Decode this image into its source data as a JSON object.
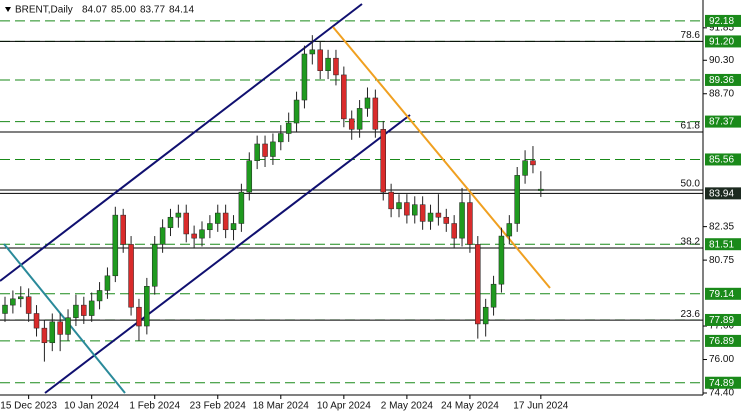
{
  "chart_data": {
    "type": "candlestick",
    "title": "BRENT,Daily",
    "last_quote": [
      {
        "value": 84.07,
        "label": "84.07"
      },
      {
        "value": 85.0,
        "label": "85.00"
      },
      {
        "value": 83.77,
        "label": "83.77"
      },
      {
        "value": 84.14,
        "label": "84.14"
      }
    ],
    "categories": [
      null,
      null,
      null,
      "15 Dec 2023",
      null,
      null,
      null,
      null,
      null,
      null,
      null,
      "10 Jan 2024",
      null,
      null,
      null,
      null,
      null,
      null,
      null,
      "1 Feb 2024",
      null,
      null,
      null,
      null,
      null,
      null,
      null,
      "23 Feb 2024",
      null,
      null,
      null,
      null,
      null,
      null,
      null,
      "18 Mar 2024",
      null,
      null,
      null,
      null,
      null,
      null,
      null,
      "10 Apr 2024",
      null,
      null,
      null,
      null,
      null,
      null,
      null,
      "2 May 2024",
      null,
      null,
      null,
      null,
      null,
      null,
      null,
      "24 May 2024",
      null,
      null,
      null,
      null,
      null,
      null,
      null,
      null,
      "17 Jun 2024"
    ],
    "open": [
      78.2,
      78.6,
      78.9,
      79.0,
      78.2,
      77.5,
      76.8,
      77.8,
      77.2,
      78.0,
      78.6,
      78.1,
      78.8,
      79.3,
      80.0,
      82.9,
      81.5,
      78.5,
      77.6,
      79.5,
      81.5,
      82.3,
      82.8,
      83.0,
      82.0,
      81.8,
      82.2,
      82.5,
      83.0,
      82.2,
      82.5,
      84.0,
      85.5,
      86.3,
      85.7,
      86.4,
      86.8,
      87.3,
      88.4,
      90.6,
      90.8,
      89.8,
      90.4,
      89.6,
      87.5,
      87.0,
      88.0,
      88.5,
      87.0,
      84.0,
      83.2,
      83.5,
      82.9,
      83.4,
      82.6,
      83.0,
      82.8,
      82.5,
      81.8,
      83.5,
      81.5,
      77.7,
      78.5,
      79.6,
      81.9,
      82.5,
      84.8,
      85.5,
      84.07
    ],
    "high": [
      79.0,
      79.3,
      79.5,
      79.4,
      78.6,
      77.9,
      78.2,
      78.2,
      78.4,
      79.1,
      79.0,
      79.2,
      79.7,
      80.4,
      83.3,
      83.2,
      81.9,
      78.9,
      79.9,
      81.9,
      82.7,
      83.2,
      83.4,
      83.4,
      82.4,
      82.6,
      82.9,
      83.4,
      83.4,
      82.9,
      84.4,
      85.9,
      86.7,
      86.7,
      86.8,
      87.2,
      87.8,
      88.8,
      91.0,
      91.5,
      91.2,
      90.8,
      90.8,
      90.0,
      87.9,
      88.4,
      89.0,
      88.9,
      87.4,
      84.4,
      83.9,
      83.9,
      83.8,
      83.8,
      83.4,
      83.9,
      83.2,
      82.9,
      84.2,
      83.9,
      81.9,
      78.9,
      80.0,
      82.3,
      82.9,
      85.2,
      86.0,
      86.2,
      85.0
    ],
    "low": [
      77.8,
      78.2,
      78.5,
      77.8,
      77.1,
      75.9,
      76.4,
      76.4,
      76.9,
      77.6,
      77.7,
      77.8,
      78.4,
      78.9,
      79.7,
      81.1,
      78.1,
      76.9,
      77.2,
      79.1,
      81.1,
      81.9,
      82.3,
      81.6,
      81.3,
      81.4,
      81.8,
      82.1,
      81.8,
      81.7,
      82.1,
      83.6,
      85.1,
      85.2,
      85.3,
      86.0,
      86.4,
      86.9,
      88.0,
      90.1,
      89.4,
      89.4,
      89.1,
      87.1,
      86.5,
      86.6,
      87.6,
      86.6,
      83.6,
      82.8,
      82.8,
      82.5,
      82.5,
      82.2,
      82.2,
      82.4,
      82.1,
      81.3,
      81.4,
      81.1,
      77.0,
      77.1,
      78.1,
      79.2,
      81.5,
      82.1,
      84.4,
      84.9,
      83.77
    ],
    "close": [
      78.6,
      78.9,
      79.0,
      78.2,
      77.5,
      76.8,
      77.8,
      77.2,
      78.0,
      78.6,
      78.1,
      78.8,
      79.3,
      80.0,
      82.9,
      81.5,
      78.5,
      77.6,
      79.5,
      81.5,
      82.3,
      82.8,
      83.0,
      82.0,
      81.8,
      82.2,
      82.5,
      83.0,
      82.2,
      82.5,
      84.0,
      85.5,
      86.3,
      85.7,
      86.4,
      86.8,
      87.3,
      88.4,
      90.6,
      90.8,
      89.8,
      90.4,
      89.6,
      87.5,
      87.0,
      88.0,
      88.5,
      87.0,
      84.0,
      83.2,
      83.5,
      82.9,
      83.4,
      82.6,
      83.0,
      82.8,
      82.5,
      81.8,
      83.5,
      81.5,
      77.7,
      78.5,
      79.6,
      81.9,
      82.5,
      84.8,
      85.5,
      85.3,
      84.14
    ],
    "up_color": "#1f9a1f",
    "down_color": "#d92b2b",
    "ylim": [
      74.4,
      93.18
    ],
    "yticks": [
      {
        "value": 91.85,
        "label": "91.85"
      },
      {
        "value": 90.3,
        "label": "90.30"
      },
      {
        "value": 88.7,
        "label": "88.70"
      },
      {
        "value": 82.35,
        "label": "82.35"
      },
      {
        "value": 80.75,
        "label": "80.75"
      },
      {
        "value": 77.6,
        "label": "77.60"
      },
      {
        "value": 76.0,
        "label": "76.00"
      },
      {
        "value": 74.4,
        "label": "74.40"
      }
    ],
    "price_levels": [
      {
        "value": 92.18,
        "label": "92.18"
      },
      {
        "value": 91.2,
        "label": "91.20"
      },
      {
        "value": 89.36,
        "label": "89.36"
      },
      {
        "value": 87.37,
        "label": "87.37"
      },
      {
        "value": 85.56,
        "label": "85.56"
      },
      {
        "value": 81.51,
        "label": "81.51"
      },
      {
        "value": 79.14,
        "label": "79.14"
      },
      {
        "value": 77.89,
        "label": "77.89"
      },
      {
        "value": 76.89,
        "label": "76.89"
      },
      {
        "value": 74.89,
        "label": "74.89"
      }
    ],
    "level_color": "#1a8a1a",
    "current_price": {
      "value": 83.94,
      "label": "83.94"
    },
    "fib_levels": [
      {
        "ratio": "78.6",
        "price": 91.2
      },
      {
        "ratio": "61.8",
        "price": 86.87
      },
      {
        "ratio": "50.0",
        "price": 84.1
      },
      {
        "ratio": "38.2",
        "price": 81.33
      },
      {
        "ratio": "23.6",
        "price": 77.88
      }
    ]
  }
}
